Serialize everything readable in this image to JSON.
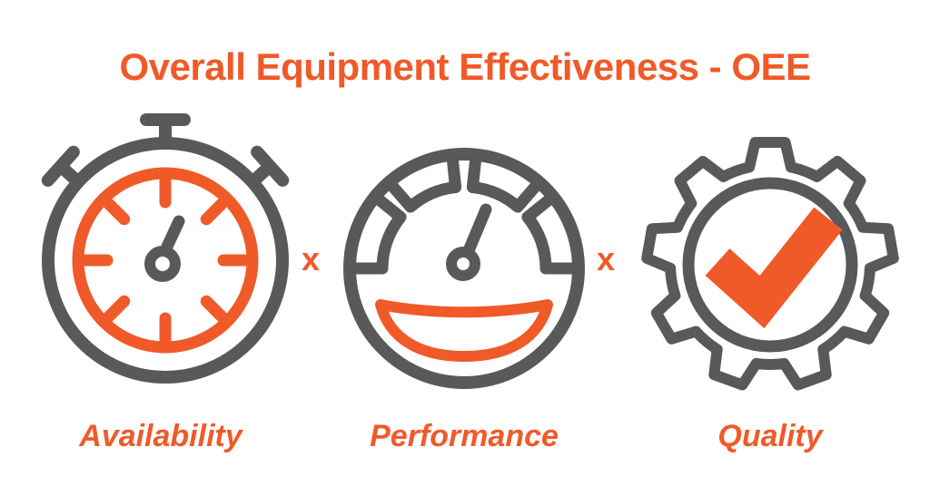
{
  "title": "Overall Equipment Effectiveness - OEE",
  "multiply_symbol": "x",
  "colors": {
    "accent": "#F05A28",
    "gray": "#58595B",
    "background": "#FFFFFF"
  },
  "factors": [
    {
      "label": "Availability",
      "icon": "stopwatch-icon"
    },
    {
      "label": "Performance",
      "icon": "speedometer-icon"
    },
    {
      "label": "Quality",
      "icon": "gear-checkmark-icon"
    }
  ]
}
